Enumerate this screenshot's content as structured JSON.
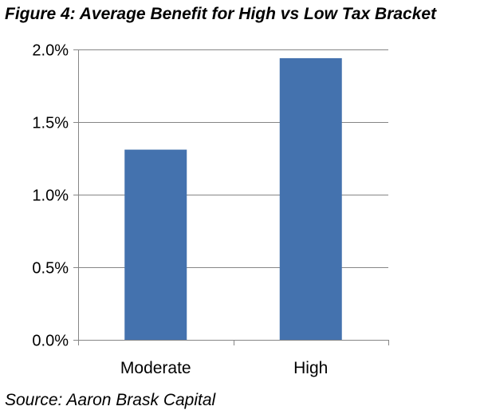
{
  "figure": {
    "title": "Figure 4: Average Benefit for High vs Low Tax Bracket",
    "source": "Source: Aaron Brask Capital"
  },
  "chart_data": {
    "type": "bar",
    "categories": [
      "Moderate",
      "High"
    ],
    "values": [
      1.31,
      1.94
    ],
    "ylim": [
      0,
      2.0
    ],
    "yticks": [
      0.0,
      0.5,
      1.0,
      1.5,
      2.0
    ],
    "ytick_labels": [
      "0.0%",
      "0.5%",
      "1.0%",
      "1.5%",
      "2.0%"
    ],
    "grid": true,
    "legend": "none",
    "colors": {
      "bar": "#4472AE",
      "grid": "#868686",
      "axis": "#868686"
    }
  }
}
